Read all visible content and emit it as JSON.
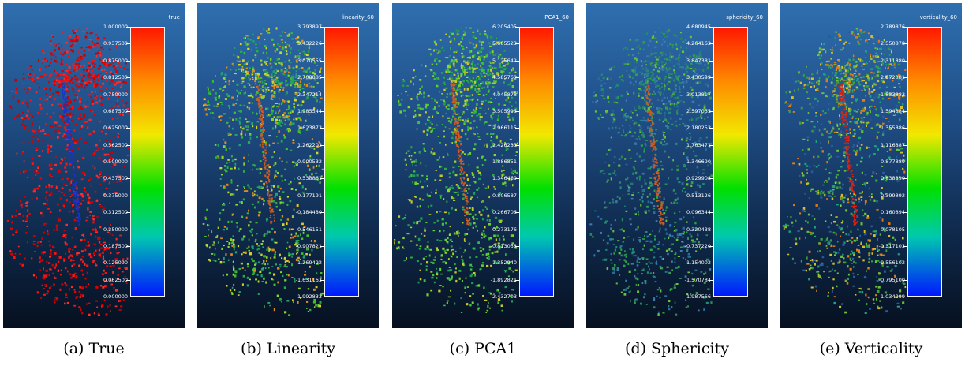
{
  "panels": [
    {
      "caption": "(a) True",
      "scalar_field": "true",
      "ticks": [
        "1.000000",
        "0.937500",
        "0.875000",
        "0.812500",
        "0.750000",
        "0.687500",
        "0.625000",
        "0.562500",
        "0.500000",
        "0.437500",
        "0.375000",
        "0.312500",
        "0.250000",
        "0.187500",
        "0.125000",
        "0.062500",
        "0.000000"
      ]
    },
    {
      "caption": "(b) Linearity",
      "scalar_field": "linearity_60",
      "ticks": [
        "3.793897",
        "3.432226",
        "3.070555",
        "2.708885",
        "2.347214",
        "1.985544",
        "1.623873",
        "1.262202",
        "0.900532",
        "0.538861",
        "0.177191",
        "-0.184480",
        "-0.546151",
        "-0.907821",
        "-1.269492",
        "-1.631163",
        "-1.992833"
      ]
    },
    {
      "caption": "(c) PCA1",
      "scalar_field": "PCA1_60",
      "ticks": [
        "6.205405",
        "5.665523",
        "5.125642",
        "4.585760",
        "4.045878",
        "3.505996",
        "2.966115",
        "2.426233",
        "1.886351",
        "1.346469",
        "0.806587",
        "0.266706",
        "-0.273176",
        "-0.813058",
        "-1.352940",
        "-1.892821",
        "-2.432703"
      ]
    },
    {
      "caption": "(d) Sphericity",
      "scalar_field": "sphericity_60",
      "ticks": [
        "4.680945",
        "4.264163",
        "3.847381",
        "3.430599",
        "3.013817",
        "2.597035",
        "2.180253",
        "1.763471",
        "1.346690",
        "0.929908",
        "0.513126",
        "0.096344",
        "-0.320438",
        "-0.737220",
        "-1.154002",
        "-1.570784",
        "-1.987566"
      ]
    },
    {
      "caption": "(e) Verticality",
      "scalar_field": "verticality_60",
      "ticks": [
        "2.789876",
        "2.550878",
        "2.311880",
        "2.072881",
        "1.833883",
        "1.594884",
        "1.355886",
        "1.116887",
        "0.877889",
        "0.638890",
        "0.399892",
        "0.160894",
        "-0.078105",
        "-0.317103",
        "-0.556102",
        "-0.795100",
        "-1.034099"
      ]
    }
  ]
}
